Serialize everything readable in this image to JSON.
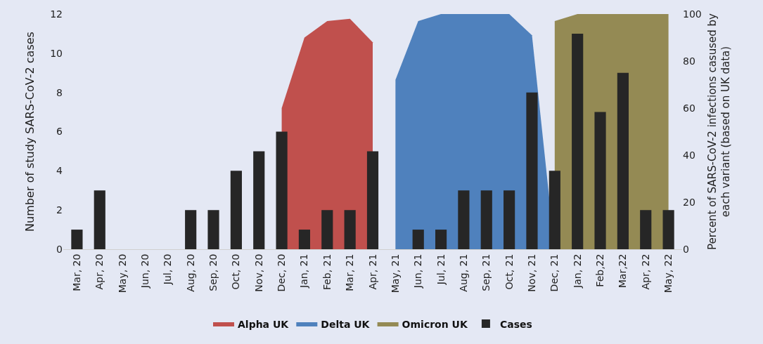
{
  "chart_data": {
    "type": "bar",
    "categories": [
      "Mar, 20",
      "Apr, 20",
      "May, 20",
      "Jun, 20",
      "Jul, 20",
      "Aug, 20",
      "Sep, 20",
      "Oct, 20",
      "Nov, 20",
      "Dec, 20",
      "Jan, 21",
      "Feb, 21",
      "Mar, 21",
      "Apr, 21",
      "May, 21",
      "Jun, 21",
      "Jul, 21",
      "Aug, 21",
      "Sep, 21",
      "Oct, 21",
      "Nov, 21",
      "Dec, 21",
      "Jan, 22",
      "Feb,22",
      "Mar,22",
      "Apr, 22",
      "May, 22"
    ],
    "ylabel": "Number of study SARS-CoV-2 cases",
    "y2label": "Percent of SARS-CoV-2 infections casused by each variant (based on UK data)",
    "ylim": [
      0,
      12
    ],
    "yticks": [
      0,
      2,
      4,
      6,
      8,
      10,
      12
    ],
    "y2lim": [
      0,
      100
    ],
    "y2ticks": [
      0,
      20,
      40,
      60,
      80,
      100
    ],
    "series": [
      {
        "name": "Alpha UK",
        "type": "area",
        "axis": "y2",
        "color": "#c0504d",
        "values": [
          null,
          null,
          null,
          null,
          null,
          null,
          null,
          null,
          null,
          60,
          90,
          97,
          98,
          88,
          null,
          null,
          null,
          null,
          null,
          null,
          null,
          null,
          null,
          null,
          null,
          null,
          null
        ]
      },
      {
        "name": "Delta UK",
        "type": "area",
        "axis": "y2",
        "color": "#4f81bd",
        "values": [
          null,
          null,
          null,
          null,
          null,
          null,
          null,
          null,
          null,
          null,
          null,
          null,
          null,
          null,
          72,
          97,
          100,
          100,
          100,
          100,
          91,
          0,
          null,
          null,
          null,
          null,
          null
        ]
      },
      {
        "name": "Omicron UK",
        "type": "area",
        "axis": "y2",
        "color": "#948a54",
        "values": [
          null,
          null,
          null,
          null,
          null,
          null,
          null,
          null,
          null,
          null,
          null,
          null,
          null,
          null,
          null,
          null,
          null,
          null,
          null,
          null,
          null,
          97,
          100,
          100,
          100,
          100,
          100
        ]
      },
      {
        "name": "Cases",
        "color": "#262626",
        "values": [
          1,
          3,
          0,
          0,
          0,
          2,
          2,
          4,
          5,
          6,
          1,
          2,
          2,
          5,
          0,
          1,
          1,
          3,
          3,
          3,
          8,
          4,
          11,
          7,
          9,
          2,
          2
        ]
      }
    ],
    "legend": "bottom",
    "grid": false
  }
}
